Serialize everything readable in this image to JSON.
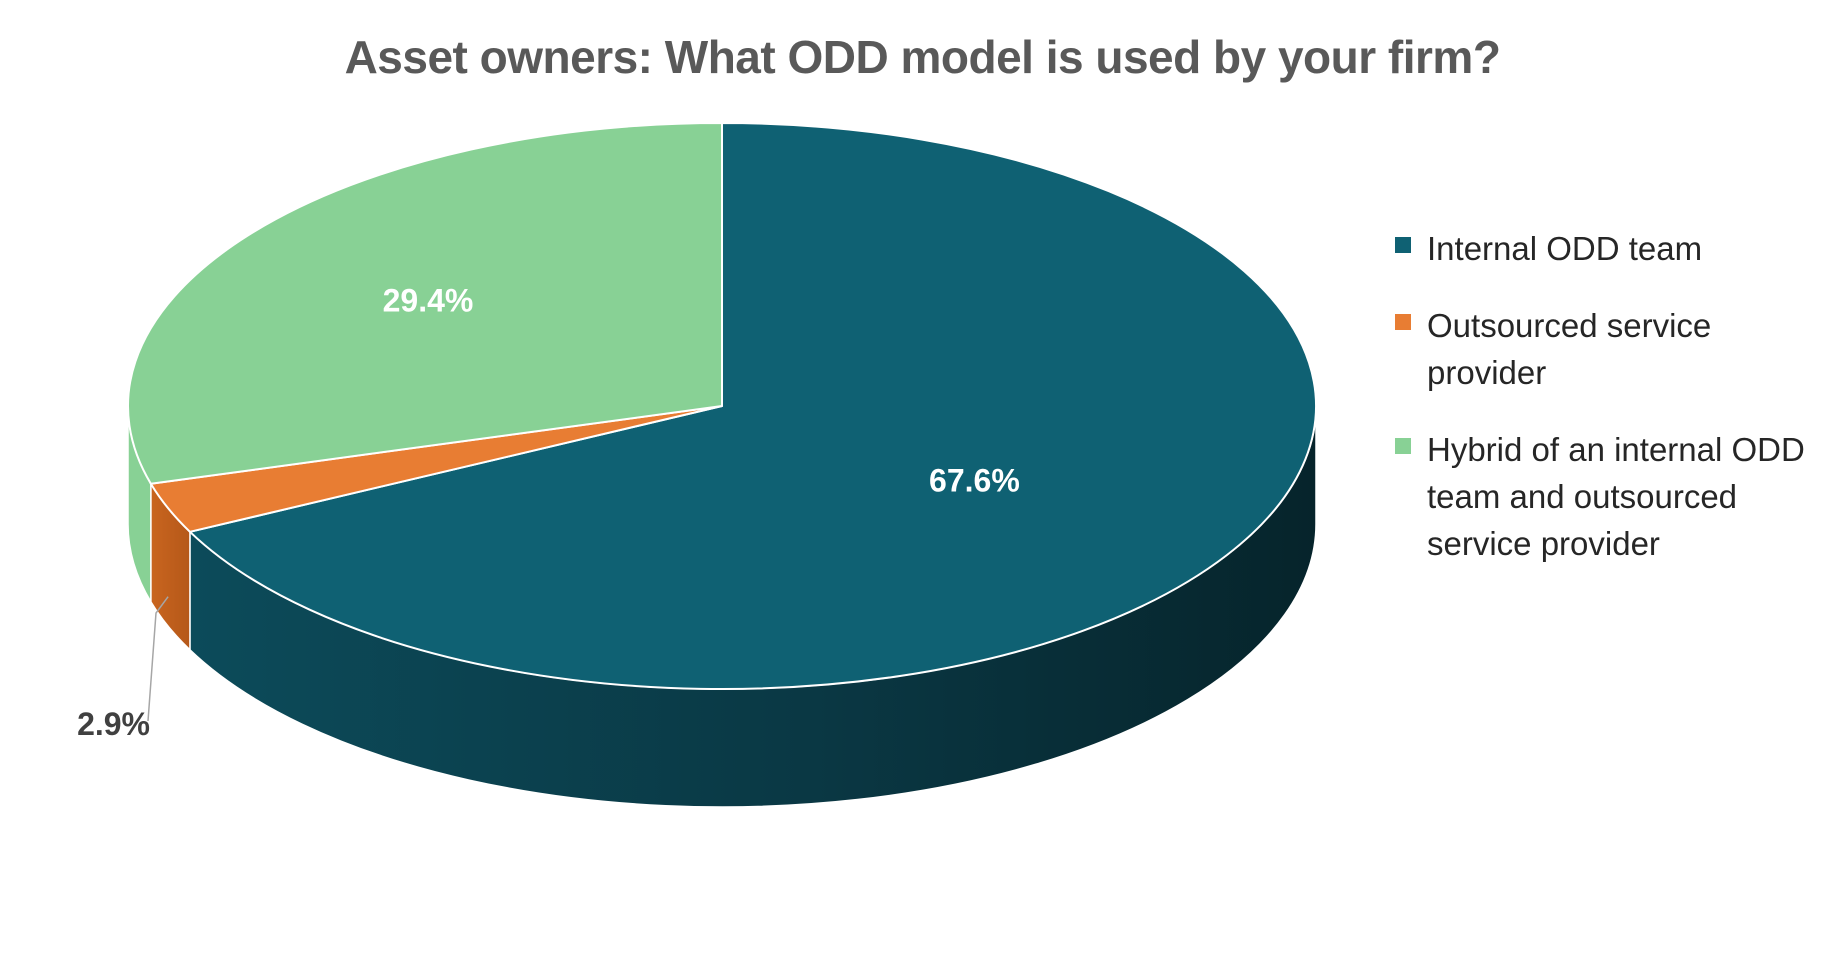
{
  "chart_data": {
    "type": "pie",
    "title": "Asset owners: What ODD model is used by your firm?",
    "slices": [
      {
        "label": "Internal ODD team",
        "value": 67.6,
        "display": "67.6%",
        "color": "#0f6173"
      },
      {
        "label": "Outsourced service provider",
        "value": 2.9,
        "display": "2.9%",
        "color": "#e87d33"
      },
      {
        "label": "Hybrid of an internal ODD team and outsourced service provider",
        "value": 29.4,
        "display": "29.4%",
        "color": "#88d195"
      }
    ],
    "legend_position": "right",
    "three_d": true
  }
}
